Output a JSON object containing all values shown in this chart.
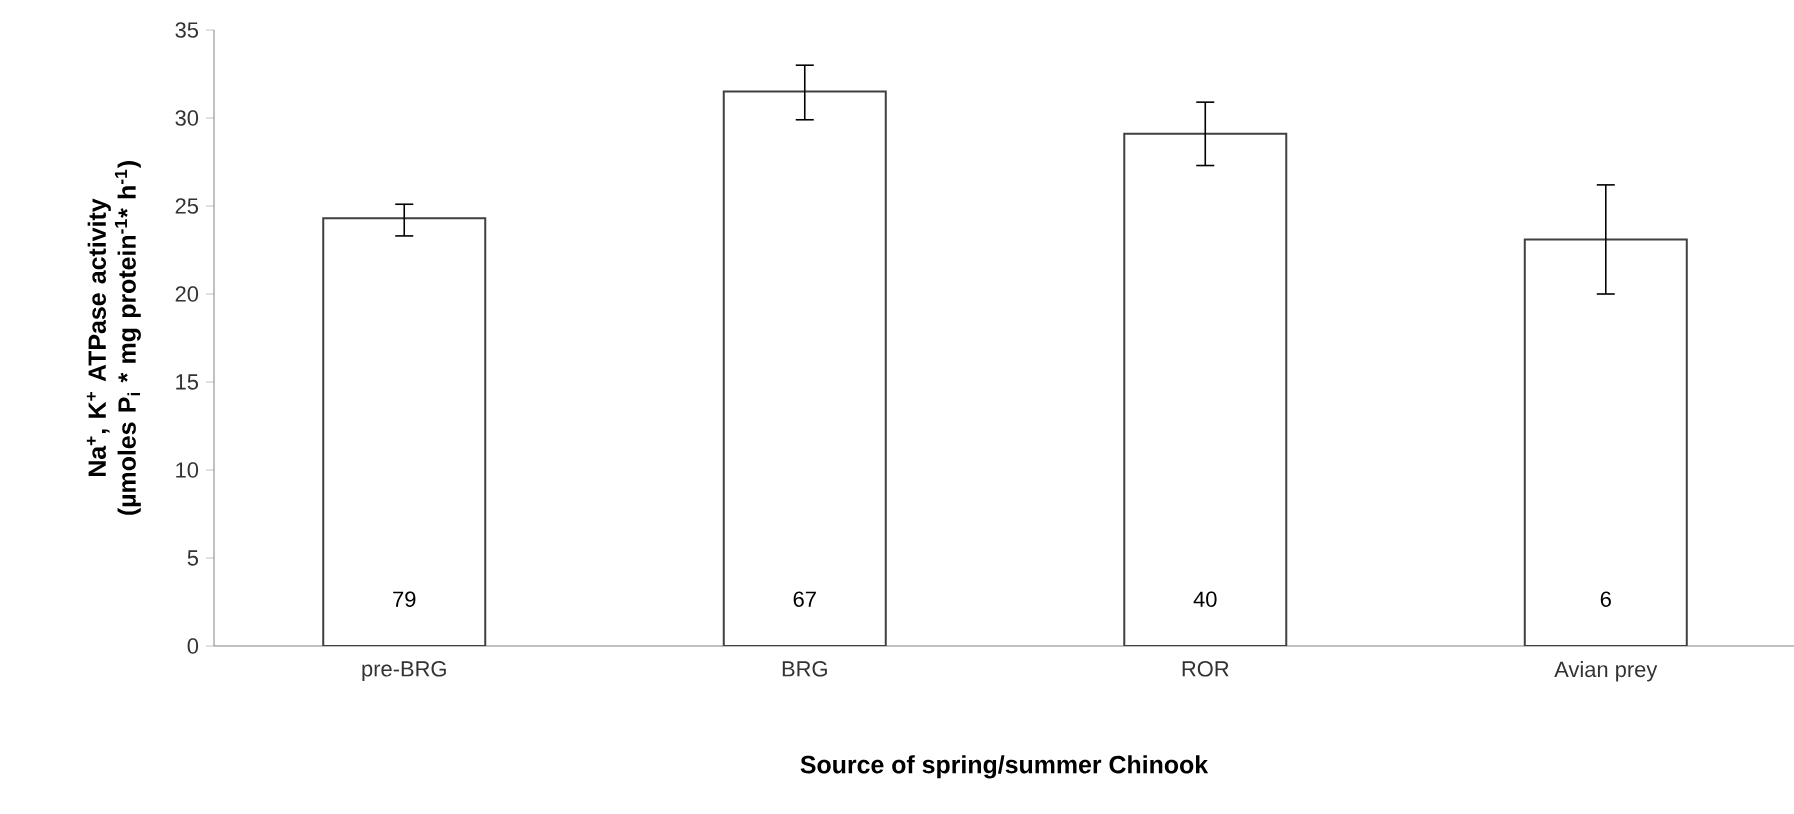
{
  "chart_data": {
    "type": "bar",
    "xlabel": "Source of spring/summer Chinook",
    "ylabel": "Na$^{+}$, K$^{+}$ ATPase activity (µmoles P$_{i}$ * mg protein$^{-1}$* h$^{-1}$)",
    "categories": [
      "pre-BRG",
      "BRG",
      "ROR",
      "Avian prey"
    ],
    "values": [
      24.3,
      31.5,
      29.1,
      23.1
    ],
    "errors": [
      [
        23.3,
        25.1
      ],
      [
        29.9,
        33.0
      ],
      [
        27.3,
        30.9
      ],
      [
        20.0,
        26.2
      ]
    ],
    "color": "#ffffff",
    "ylim": [
      0,
      35
    ],
    "yticks": [
      0,
      5,
      10,
      15,
      20,
      25,
      30,
      35
    ],
    "annotations": [
      "79",
      "67",
      "40",
      "6"
    ]
  }
}
